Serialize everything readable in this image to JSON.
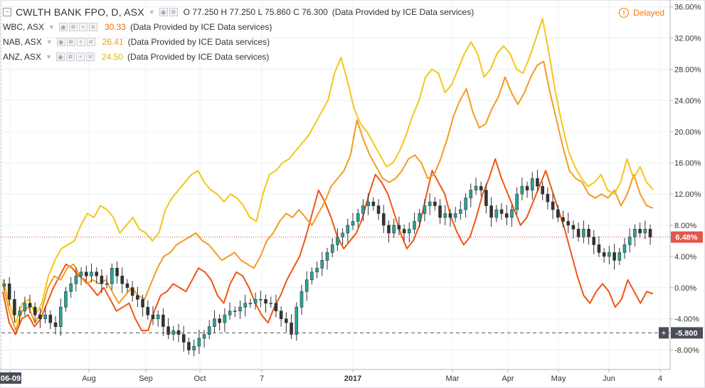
{
  "legend": {
    "main": {
      "symbol": "CWLTH BANK FPO, D, ASX",
      "o_label": "O",
      "o": "77.250",
      "h_label": "H",
      "h": "77.250",
      "l_label": "L",
      "l": "75.860",
      "c_label": "C",
      "c": "76.300",
      "provider": "(Data Provided by ICE Data services)"
    },
    "compare": [
      {
        "symbol": "WBC, ASX",
        "value": "30.33",
        "color": "#ef6c00",
        "provider": "(Data Provided by ICE Data services)"
      },
      {
        "symbol": "NAB, ASX",
        "value": "26.41",
        "color": "#f39c12",
        "provider": "(Data Provided by ICE Data services)"
      },
      {
        "symbol": "ANZ, ASX",
        "value": "24.50",
        "color": "#f1c40f",
        "provider": "(Data Provided by ICE Data services)"
      }
    ]
  },
  "status": {
    "delayed": "Delayed",
    "icon": "alert-circle-icon",
    "color": "#f57c00"
  },
  "colors": {
    "up": "#26a69a",
    "down": "#333333",
    "grid": "#eef0f3",
    "axis_text": "#333333"
  },
  "chart_data": {
    "type": "line",
    "ylim": [
      -10.5,
      36.7
    ],
    "yaxis_unit": "percent",
    "y_ticks": [
      "36.00%",
      "32.00%",
      "28.00%",
      "24.00%",
      "20.00%",
      "16.00%",
      "12.00%",
      "8.00%",
      "4.00%",
      "0.00%",
      "-4.00%",
      "-8.00%"
    ],
    "y_tick_values": [
      36,
      32,
      28,
      24,
      20,
      16,
      12,
      8,
      4,
      0,
      -4,
      -8
    ],
    "x_labels": [
      "06-09",
      "Aug",
      "Sep",
      "Oct",
      "7",
      "2017",
      "Mar",
      "Apr",
      "May",
      "Jun",
      "4"
    ],
    "x_label_bold": [
      true,
      false,
      false,
      false,
      false,
      true,
      false,
      false,
      false,
      false,
      false
    ],
    "current_label": "6.48%",
    "current_value": 6.48,
    "crosshair_label": "-5.800",
    "crosshair_value": -5.8,
    "crosshair_plus": "+",
    "series": [
      {
        "name": "WBC, ASX",
        "color": "#ef5513",
        "values": [
          -0.5,
          -4.5,
          -6,
          -4,
          -3.5,
          -5,
          -4,
          -2,
          0,
          1.5,
          3,
          2.5,
          1.5,
          1,
          0,
          -1,
          0,
          -1.5,
          -3,
          -2.5,
          -2,
          -4,
          -5.5,
          -5.5,
          -3,
          -1,
          -0.5,
          0.5,
          0,
          -0.5,
          1,
          2.5,
          2,
          1,
          -1,
          -2,
          0.5,
          2,
          1.5,
          0,
          -2,
          -3.5,
          -4.5,
          -2.5,
          -1,
          1,
          2.5,
          4,
          6.5,
          9.5,
          12.5,
          11,
          9,
          6.5,
          5,
          6,
          7,
          9,
          12,
          14.5,
          13.5,
          12,
          9.5,
          7,
          5,
          6,
          8,
          11.5,
          15,
          13.5,
          12,
          9,
          7,
          5.5,
          6.5,
          9,
          12,
          14,
          16.5,
          14,
          12,
          10,
          8,
          9,
          11,
          13,
          15,
          12.5,
          10,
          7.5,
          4.5,
          1.5,
          -1,
          -2,
          -0.5,
          0.5,
          -0.5,
          -2.5,
          -1.5,
          1,
          -0.5,
          -2,
          -0.5,
          -0.8
        ]
      },
      {
        "name": "NAB, ASX",
        "color": "#f39c1f",
        "values": [
          0.5,
          -3,
          -5.5,
          -3,
          -2.5,
          -4.5,
          -3,
          0,
          1.5,
          1,
          2.5,
          3,
          1.5,
          0.5,
          1,
          0.5,
          1,
          -0.5,
          -2,
          -1,
          0,
          -1,
          -1.5,
          0.5,
          2.5,
          4,
          4.5,
          5.5,
          6,
          6.5,
          7,
          6,
          5.5,
          4.5,
          3.5,
          4,
          4.5,
          3.5,
          3,
          2.5,
          4,
          6,
          7,
          8.5,
          9.5,
          9,
          10,
          9,
          8,
          9.5,
          11,
          13,
          14,
          15,
          17,
          21.5,
          19,
          17,
          15.5,
          14,
          13.5,
          14,
          15,
          16.5,
          17,
          16,
          14,
          14.5,
          16.5,
          19,
          22,
          24,
          25.5,
          22.5,
          20.5,
          21,
          23,
          24.5,
          27,
          25,
          23.5,
          25,
          27,
          28.5,
          29,
          25,
          21.5,
          18,
          15,
          14,
          13.5,
          12,
          11.5,
          12,
          11.5,
          12.5,
          10.5,
          12,
          14.5,
          12,
          10.5,
          10.2
        ]
      },
      {
        "name": "ANZ, ASX",
        "color": "#f2c717",
        "values": [
          1,
          -2,
          -4.5,
          -2,
          -1.5,
          -3.5,
          -2,
          1.5,
          3.5,
          5,
          5.5,
          6,
          8,
          9.5,
          9,
          10.5,
          10,
          9,
          7,
          8,
          9,
          7.5,
          7,
          6,
          7,
          10,
          11.5,
          12.5,
          13.5,
          14.5,
          15,
          13.5,
          12.5,
          12,
          11,
          12,
          11.5,
          10.5,
          9,
          8.5,
          12,
          14.5,
          15,
          16,
          16.5,
          17.5,
          18.5,
          19.5,
          21,
          22.5,
          24,
          27.5,
          29.5,
          26.5,
          23,
          21,
          20,
          18.5,
          17,
          15.5,
          16,
          17.5,
          19.5,
          22,
          24,
          27,
          28,
          27.5,
          25,
          26,
          28,
          30,
          31.5,
          30,
          27,
          28,
          30,
          31,
          30,
          28,
          27.5,
          29.5,
          32,
          34.5,
          30,
          25,
          21,
          17.5,
          15.5,
          14,
          13,
          13.5,
          14.5,
          12.5,
          12,
          13.5,
          16.5,
          14,
          15.5,
          13.5,
          12.6
        ]
      },
      {
        "name": "",
        "color": "#333333",
        "type": "candlestick",
        "close": [
          0.5,
          -1.5,
          -3.5,
          -3,
          -2,
          -2.5,
          -3.5,
          -4,
          -3.5,
          -4.5,
          -5,
          -2.5,
          -0.5,
          0.5,
          1.5,
          2,
          1.5,
          2,
          1.5,
          0.5,
          0.5,
          2.5,
          1.5,
          0.5,
          0,
          -1,
          -1.5,
          -2.5,
          -3.5,
          -4,
          -3.5,
          -5,
          -6,
          -5.5,
          -6,
          -7,
          -8,
          -7.5,
          -6.5,
          -6,
          -5,
          -4,
          -4.5,
          -3.5,
          -3,
          -3,
          -2.5,
          -2,
          -2,
          -1.5,
          -1.5,
          -2,
          -2,
          -3,
          -4,
          -4.5,
          -6,
          -2.5,
          -0.5,
          1,
          2,
          2.5,
          3.5,
          4.5,
          5.5,
          6.5,
          7,
          8,
          8.5,
          9.5,
          10.5,
          11,
          10.5,
          9.5,
          8,
          7,
          8,
          7.5,
          7,
          7.5,
          8.5,
          9.5,
          10.5,
          11,
          10.5,
          9,
          9.5,
          9,
          9.5,
          10,
          11.5,
          12.5,
          13,
          12.5,
          10.5,
          9,
          10,
          9.5,
          9,
          10,
          12,
          13,
          12.5,
          14,
          13,
          12,
          11,
          10,
          9,
          8.5,
          8,
          7.5,
          6.5,
          7.5,
          6.5,
          5.5,
          4.5,
          4,
          4.5,
          3.5,
          4.5,
          5.5,
          6.5,
          7.5,
          7,
          7.5,
          6.48
        ]
      }
    ]
  }
}
